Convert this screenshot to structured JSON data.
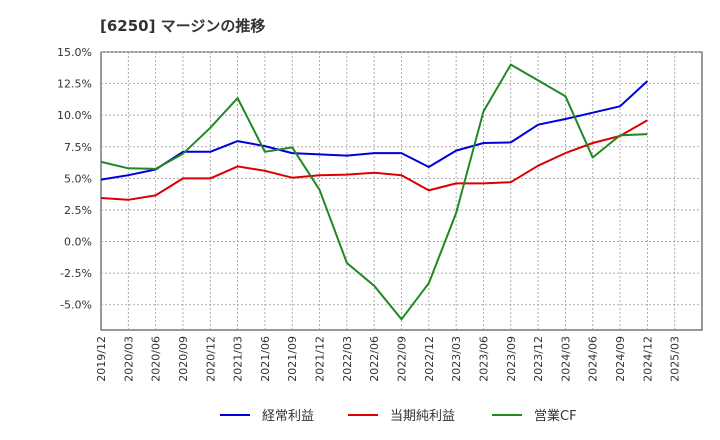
{
  "chart_data": {
    "type": "line",
    "title": "[6250]  マージンの推移",
    "xlabel": "",
    "ylabel": "",
    "x": [
      "2019/12",
      "2020/03",
      "2020/06",
      "2020/09",
      "2020/12",
      "2021/03",
      "2021/06",
      "2021/09",
      "2021/12",
      "2022/03",
      "2022/06",
      "2022/09",
      "2022/12",
      "2023/03",
      "2023/06",
      "2023/09",
      "2023/12",
      "2024/03",
      "2024/06",
      "2024/09",
      "2024/12",
      "2025/03"
    ],
    "ylim": [
      -7.0,
      15.0
    ],
    "yticks": [
      15.0,
      12.5,
      10.0,
      7.5,
      5.0,
      2.5,
      0.0,
      -2.5,
      -5.0
    ],
    "ytick_labels": [
      "15.0%",
      "12.5%",
      "10.0%",
      "7.5%",
      "5.0%",
      "2.5%",
      "0.0%",
      "-2.5%",
      "-5.0%"
    ],
    "grid": true,
    "legend_position": "bottom",
    "series": [
      {
        "name": "経常利益",
        "color": "#0000dd",
        "values": [
          4.9,
          5.25,
          5.7,
          7.1,
          7.1,
          7.95,
          7.55,
          7.0,
          6.9,
          6.8,
          7.0,
          7.0,
          5.9,
          7.2,
          7.8,
          7.85,
          9.25,
          9.7,
          10.2,
          10.7,
          12.7,
          null
        ]
      },
      {
        "name": "当期純利益",
        "color": "#dd0000",
        "values": [
          3.45,
          3.3,
          3.65,
          5.0,
          5.0,
          5.95,
          5.6,
          5.05,
          5.25,
          5.3,
          5.45,
          5.25,
          4.05,
          4.6,
          4.6,
          4.7,
          6.0,
          7.0,
          7.8,
          8.35,
          9.6,
          null
        ]
      },
      {
        "name": "営業CF",
        "color": "#228822",
        "values": [
          6.3,
          5.8,
          5.75,
          6.95,
          9.0,
          11.35,
          7.1,
          7.45,
          4.1,
          -1.7,
          -3.5,
          -6.15,
          -3.3,
          2.25,
          10.3,
          14.0,
          12.75,
          11.5,
          6.65,
          8.4,
          8.5,
          null
        ]
      }
    ]
  }
}
